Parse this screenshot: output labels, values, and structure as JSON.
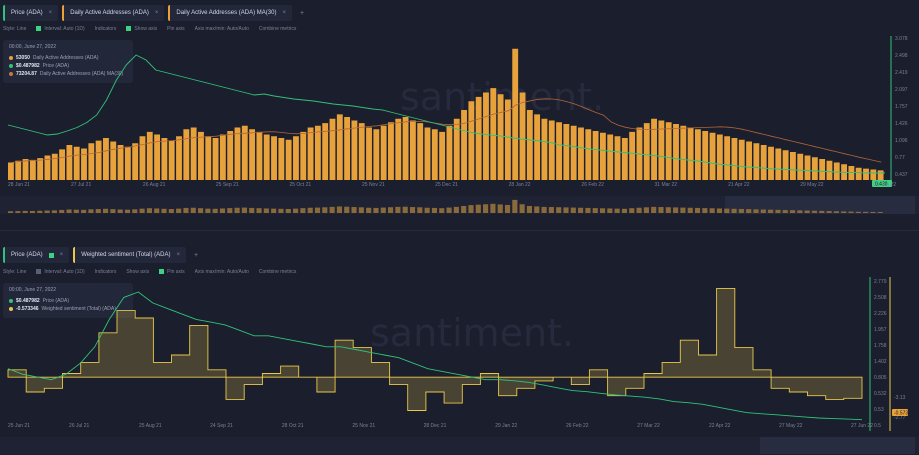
{
  "panel1": {
    "tabs": [
      {
        "label": "Price (ADA)",
        "color": "#30c37b"
      },
      {
        "label": "Daily Active Addresses (ADA)",
        "color": "#e8a23b"
      },
      {
        "label": "Daily Active Addresses (ADA) MA(30)",
        "color": "#e8a23b"
      }
    ],
    "toolbar": {
      "style": "Style: Line",
      "interval": "Interval: Auto (1D)",
      "indicators": "Indicators",
      "show_axis": "Show axis",
      "pin_axis": "Pin axis",
      "axis_max_min": "Axis max/min: Auto/Auto",
      "combine": "Combine metrics"
    },
    "legend": {
      "date": "00:00, June 27, 2022",
      "rows": [
        {
          "value": "53050",
          "label": "Daily Active Addresses (ADA)",
          "color": "#e8a23b"
        },
        {
          "value": "$0.487982",
          "label": "Price (ADA)",
          "color": "#30c37b"
        },
        {
          "value": "73204.87",
          "label": "Daily Active Addresses (ADA) MA(30)",
          "color": "#c7773a"
        }
      ]
    },
    "watermark": "santiment.",
    "axis_right": [
      "3.078",
      "2.498",
      "2.419",
      "2.097",
      "1.757",
      "1.426",
      "1.096",
      "0.77",
      "0.437"
    ],
    "current_price_label": "0.438",
    "x_ticks": [
      "28 Jun 21",
      "27 Jul 21",
      "26 Aug 21",
      "25 Sep 21",
      "25 Oct 21",
      "25 Nov 21",
      "25 Dec 21",
      "28 Jan 22",
      "26 Feb 22",
      "31 Mar 22",
      "21 Apr 22",
      "29 May 22",
      "27 Jun 22"
    ]
  },
  "panel2": {
    "tabs": [
      {
        "label": "Price (ADA)",
        "color": "#30c37b"
      },
      {
        "label": "Weighted sentiment (Total) (ADA)",
        "color": "#e8c84b"
      }
    ],
    "toolbar": {
      "style": "Style: Line",
      "interval": "Interval: Auto (1D)",
      "indicators": "Indicators",
      "show_axis": "Show axis",
      "pin_axis": "Pin axis",
      "axis_max_min": "Axis max/min: Auto/Auto",
      "combine": "Combine metrics"
    },
    "legend": {
      "date": "00:00, June 27, 2022",
      "rows": [
        {
          "value": "$0.487982",
          "label": "Price (ADA)",
          "color": "#30c37b"
        },
        {
          "value": "-0.573346",
          "label": "Weighted sentiment (Total) (ADA)",
          "color": "#e8c84b"
        }
      ]
    },
    "watermark": "santiment.",
    "axis_right": [
      "2.779",
      "2.508",
      "2.226",
      "1.957",
      "1.758",
      "1.402",
      "0.805",
      "0.532",
      "0.53",
      "0.5"
    ],
    "axis_right_2": [
      "-3.13",
      "-2.77"
    ],
    "current_label": "-0.573",
    "x_ticks": [
      "25 Jun 21",
      "26 Jul 21",
      "25 Aug 21",
      "24 Sep 21",
      "28 Oct 21",
      "25 Nov 21",
      "28 Dec 21",
      "29 Jan 22",
      "26 Feb 22",
      "27 Mar 22",
      "22 Apr 22",
      "27 May 22",
      "27 Jun 22"
    ]
  },
  "chart_data": [
    {
      "type": "bar",
      "title": "",
      "series": [
        {
          "name": "Daily Active Addresses (ADA)",
          "type": "bar",
          "values": [
            20,
            22,
            24,
            23,
            25,
            28,
            30,
            35,
            40,
            38,
            36,
            42,
            45,
            48,
            44,
            40,
            38,
            42,
            50,
            55,
            52,
            48,
            45,
            50,
            58,
            60,
            55,
            50,
            48,
            52,
            56,
            60,
            62,
            58,
            55,
            52,
            50,
            48,
            46,
            50,
            55,
            60,
            62,
            65,
            70,
            75,
            72,
            68,
            65,
            60,
            58,
            62,
            66,
            70,
            72,
            68,
            65,
            60,
            58,
            55,
            62,
            70,
            80,
            90,
            95,
            100,
            105,
            98,
            92,
            150,
            100,
            80,
            75,
            70,
            68,
            66,
            64,
            62,
            60,
            58,
            56,
            54,
            52,
            50,
            48,
            55,
            60,
            65,
            70,
            68,
            66,
            64,
            62,
            60,
            58,
            56,
            54,
            52,
            50,
            48,
            46,
            44,
            42,
            40,
            38,
            36,
            34,
            32,
            30,
            28,
            26,
            24,
            22,
            20,
            18,
            16,
            14,
            13,
            12,
            11
          ]
        },
        {
          "name": "Price (ADA)",
          "type": "line",
          "values": [
            1.4,
            1.35,
            1.3,
            1.25,
            1.2,
            1.22,
            1.28,
            1.35,
            1.45,
            1.6,
            1.9,
            2.3,
            2.6,
            2.8,
            2.7,
            2.5,
            2.45,
            2.4,
            2.35,
            2.3,
            2.25,
            2.2,
            2.15,
            2.1,
            2.05,
            2.0,
            2.02,
            1.98,
            1.95,
            1.92,
            1.9,
            1.88,
            1.85,
            1.82,
            1.8,
            1.78,
            1.75,
            1.72,
            1.7,
            1.65,
            1.6,
            1.55,
            1.5,
            1.45,
            1.4,
            1.35,
            1.3,
            1.25,
            1.22,
            1.2,
            1.18,
            1.15,
            1.12,
            1.1,
            1.08,
            1.05,
            1.0,
            0.98,
            0.95,
            0.92,
            0.9,
            0.88,
            0.86,
            0.84,
            0.82,
            0.8,
            0.78,
            0.75,
            0.72,
            0.7,
            0.68,
            0.65,
            0.62,
            0.6,
            0.58,
            0.56,
            0.55,
            0.53,
            0.52,
            0.51,
            0.5,
            0.49,
            0.48,
            0.47,
            0.46,
            0.45,
            0.45,
            0.44,
            0.44,
            0.44
          ]
        }
      ],
      "x_ticks": [
        "28 Jun 21",
        "27 Jul 21",
        "26 Aug 21",
        "25 Sep 21",
        "25 Oct 21",
        "25 Nov 21",
        "25 Dec 21",
        "28 Jan 22",
        "26 Feb 22",
        "31 Mar 22",
        "21 Apr 22",
        "29 May 22",
        "27 Jun 22"
      ]
    },
    {
      "type": "line",
      "title": "",
      "series": [
        {
          "name": "Price (ADA)",
          "values": [
            1.4,
            1.3,
            1.25,
            1.2,
            1.3,
            1.5,
            1.8,
            2.3,
            2.7,
            2.8,
            2.6,
            2.5,
            2.4,
            2.3,
            2.25,
            2.2,
            2.1,
            2.0,
            2.0,
            1.95,
            1.9,
            1.85,
            1.8,
            1.8,
            1.75,
            1.7,
            1.65,
            1.6,
            1.5,
            1.4,
            1.35,
            1.3,
            1.25,
            1.2,
            1.2,
            1.18,
            1.15,
            1.1,
            1.05,
            1.0,
            0.98,
            0.95,
            0.92,
            0.9,
            0.88,
            0.85,
            0.8,
            0.78,
            0.75,
            0.7,
            0.65,
            0.6,
            0.58,
            0.56,
            0.54,
            0.52,
            0.5,
            0.49,
            0.48,
            0.47
          ]
        },
        {
          "name": "Weighted sentiment (Total) (ADA)",
          "values": [
            0.2,
            -0.4,
            -0.3,
            0.1,
            0.4,
            1.2,
            1.8,
            1.6,
            0.4,
            0.6,
            1.4,
            0.2,
            -0.6,
            -0.2,
            0.1,
            0.3,
            0.0,
            -0.4,
            1.0,
            0.8,
            0.4,
            -0.2,
            -0.9,
            -0.4,
            -0.7,
            -0.2,
            0.1,
            -0.5,
            -0.3,
            -0.1,
            0.0,
            -0.2,
            0.2,
            -0.5,
            -0.3,
            0.1,
            0.4,
            1.0,
            0.6,
            2.4,
            0.8,
            0.2,
            -0.3,
            -0.4,
            -0.5,
            -0.6,
            -0.57
          ]
        }
      ],
      "x_ticks": [
        "25 Jun 21",
        "26 Jul 21",
        "25 Aug 21",
        "24 Sep 21",
        "28 Oct 21",
        "25 Nov 21",
        "28 Dec 21",
        "29 Jan 22",
        "26 Feb 22",
        "27 Mar 22",
        "22 Apr 22",
        "27 May 22",
        "27 Jun 22"
      ]
    }
  ]
}
